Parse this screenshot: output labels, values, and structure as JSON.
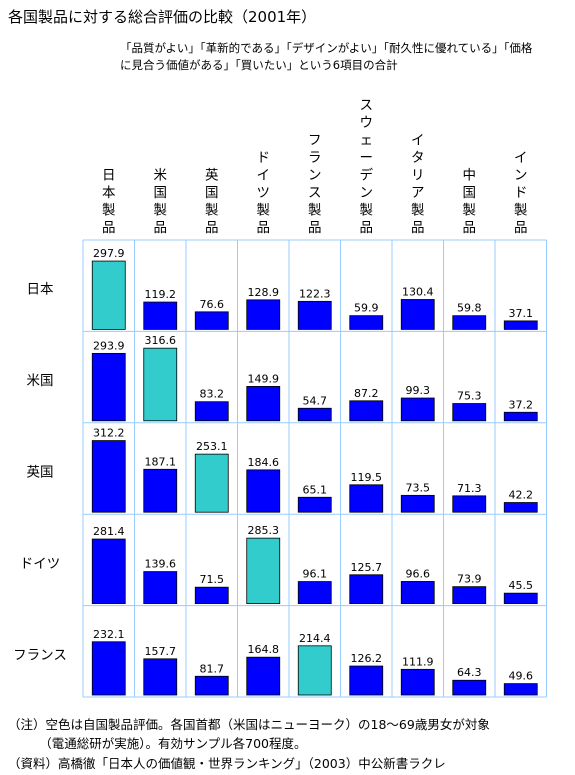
{
  "title": "各国製品に対する総合評価の比較（2001年）",
  "subtitle_lines": [
    "「品質がよい」「革新的である」「デザインがよい」「耐久性に優れている」「価格",
    "に見合う価値がある」「買いたい」という6項目の合計"
  ],
  "notes": [
    "（注）空色は自国製品評価。各国首都（米国はニューヨーク）の18～69歳男女が対象",
    "　　　（電通総研が実施）。有効サンプル各700程度。",
    "（資料）高橋徹「日本人の価値観・世界ランキング」（2003）中公新書ラクレ"
  ],
  "colors": {
    "bar": "#0000ff",
    "own_bar": "#33cccc",
    "grid": "#99ccff"
  },
  "chart_data": {
    "type": "bar",
    "categories": [
      "日本製品",
      "米国製品",
      "英国製品",
      "ドイツ製品",
      "フランス製品",
      "スウェーデン製品",
      "イタリア製品",
      "中国製品",
      "インド製品"
    ],
    "series": [
      {
        "name": "日本",
        "values": [
          297.9,
          119.2,
          76.6,
          128.9,
          122.3,
          59.9,
          130.4,
          59.8,
          37.1
        ],
        "own_index": 0
      },
      {
        "name": "米国",
        "values": [
          293.9,
          316.6,
          83.2,
          149.9,
          54.7,
          87.2,
          99.3,
          75.3,
          37.2
        ],
        "own_index": 1
      },
      {
        "name": "英国",
        "values": [
          312.2,
          187.1,
          253.1,
          184.6,
          65.1,
          119.5,
          73.5,
          71.3,
          42.2
        ],
        "own_index": 2
      },
      {
        "name": "ドイツ",
        "values": [
          281.4,
          139.6,
          71.5,
          285.3,
          96.1,
          125.7,
          96.6,
          73.9,
          45.5
        ],
        "own_index": 3
      },
      {
        "name": "フランス",
        "values": [
          232.1,
          157.7,
          81.7,
          164.8,
          214.4,
          126.2,
          111.9,
          64.3,
          49.6
        ],
        "own_index": 4
      }
    ],
    "ylim": [
      0,
      340
    ]
  }
}
